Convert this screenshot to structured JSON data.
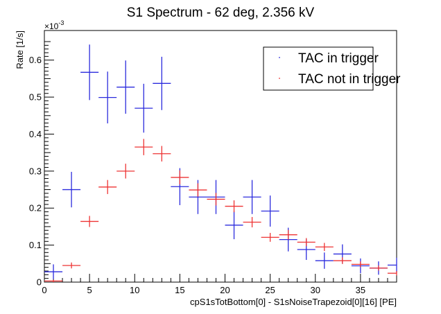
{
  "chart_data": {
    "type": "scatter",
    "title": "S1 Spectrum - 62 deg, 2.356 kV",
    "xlabel": "cpS1sTotBottom[0] - S1sNoiseTrapezoid[0][16] [PE]",
    "ylabel": "Rate [1/s]",
    "y_exponent_label": "×10",
    "y_exponent_power": "-3",
    "xlim": [
      0,
      39
    ],
    "ylim": [
      0,
      0.68
    ],
    "bin_width": 2,
    "x_ticks": [
      0,
      5,
      10,
      15,
      20,
      25,
      30,
      35
    ],
    "y_ticks": [
      0,
      0.1,
      0.2,
      0.3,
      0.4,
      0.5,
      0.6
    ],
    "x_tick_labels": [
      "0",
      "5",
      "10",
      "15",
      "20",
      "25",
      "30",
      "35"
    ],
    "y_tick_labels": [
      "0",
      "0.1",
      "0.2",
      "0.3",
      "0.4",
      "0.5",
      "0.6"
    ],
    "legend_position": "top-right",
    "grid": false,
    "series": [
      {
        "name": "TAC in trigger",
        "color": "#2b2bdd",
        "x": [
          1,
          3,
          5,
          7,
          9,
          11,
          13,
          15,
          17,
          19,
          21,
          23,
          25,
          27,
          29,
          31,
          33,
          35,
          37,
          39
        ],
        "y": [
          0.028,
          0.25,
          0.567,
          0.499,
          0.527,
          0.47,
          0.537,
          0.258,
          0.23,
          0.23,
          0.154,
          0.23,
          0.192,
          0.115,
          0.088,
          0.058,
          0.076,
          0.044,
          0.038,
          0.046
        ],
        "err": [
          0.02,
          0.048,
          0.075,
          0.07,
          0.072,
          0.066,
          0.072,
          0.05,
          0.046,
          0.046,
          0.038,
          0.046,
          0.042,
          0.032,
          0.028,
          0.022,
          0.026,
          0.02,
          0.018,
          0.02
        ]
      },
      {
        "name": "TAC not in trigger",
        "color": "#ee3333",
        "x": [
          1,
          3,
          5,
          7,
          9,
          11,
          13,
          15,
          17,
          19,
          21,
          23,
          25,
          27,
          29,
          31,
          33,
          35,
          37,
          39
        ],
        "y": [
          0.003,
          0.045,
          0.164,
          0.257,
          0.3,
          0.365,
          0.347,
          0.283,
          0.249,
          0.224,
          0.205,
          0.162,
          0.121,
          0.128,
          0.108,
          0.095,
          0.058,
          0.048,
          0.038,
          0.024
        ],
        "err": [
          0.003,
          0.008,
          0.015,
          0.019,
          0.02,
          0.022,
          0.021,
          0.019,
          0.018,
          0.017,
          0.016,
          0.014,
          0.012,
          0.013,
          0.011,
          0.011,
          0.009,
          0.008,
          0.007,
          0.006
        ]
      }
    ]
  }
}
